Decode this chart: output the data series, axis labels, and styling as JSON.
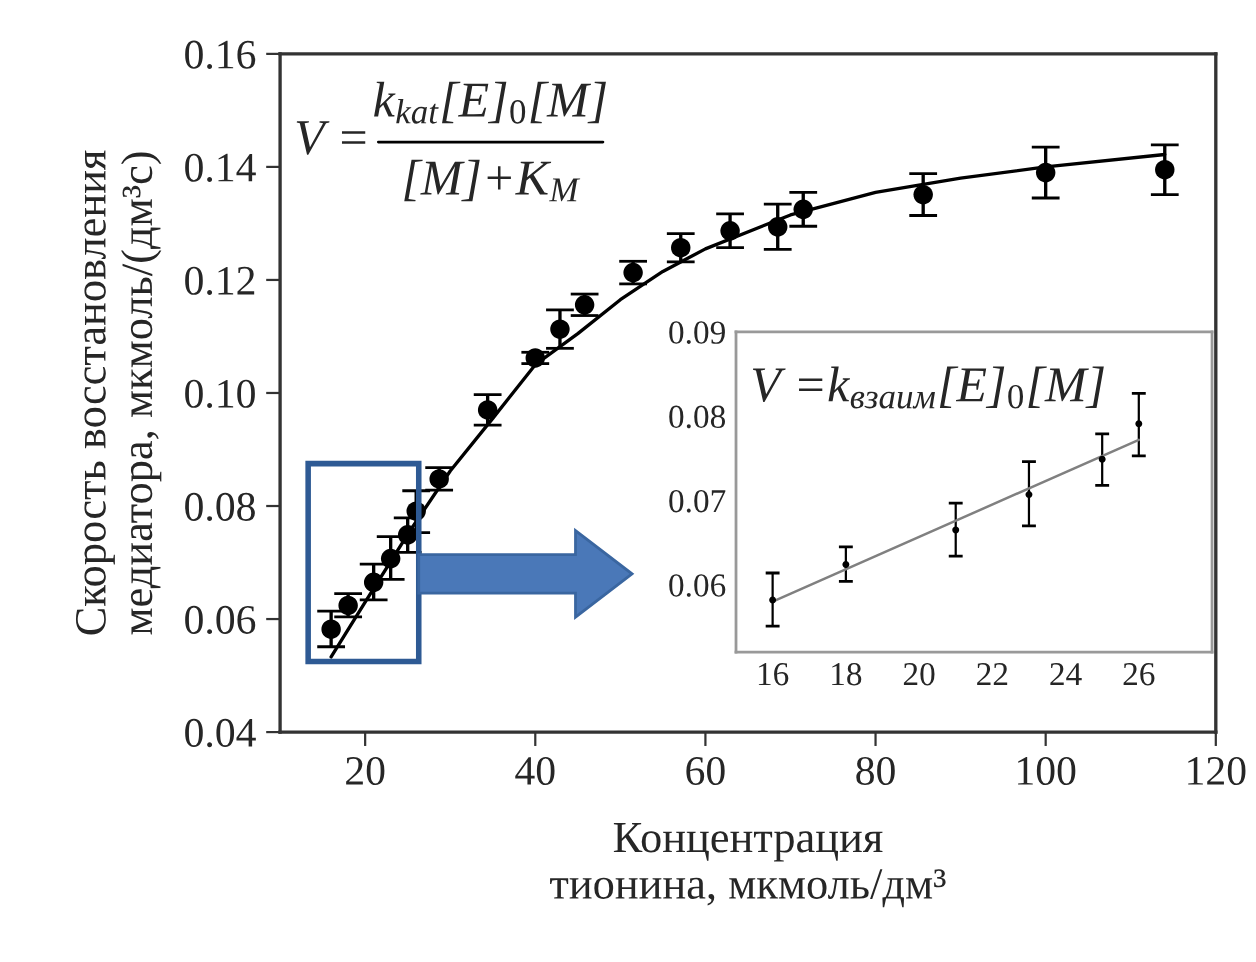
{
  "chart_data": [
    {
      "type": "scatter",
      "xlabel": "Концентрация\nтионина, мкмоль/дм³",
      "ylabel": "Скорость восстановления\nмедиатора, мкмоль/(дм³с)",
      "annotations": [
        "V =",
        "k$_{kat}$[E]$_{0}$[M]",
        "[M]+K$_{M}$"
      ],
      "xlim": [
        10,
        120
      ],
      "ylim": [
        0.04,
        0.16
      ],
      "xticks": [
        20,
        40,
        60,
        80,
        100,
        120
      ],
      "yticks": [
        {
          "value": 0.04,
          "label": "0.04"
        },
        {
          "value": 0.06,
          "label": "0.06"
        },
        {
          "value": 0.08,
          "label": "0.08"
        },
        {
          "value": 0.1,
          "label": "0.10"
        },
        {
          "value": 0.12,
          "label": "0.12"
        },
        {
          "value": 0.14,
          "label": "0.14"
        },
        {
          "value": 0.16,
          "label": "0.16"
        }
      ],
      "grid": false,
      "series": [
        {
          "marker": "circle",
          "color": "#000000",
          "x": [
            16,
            18,
            21,
            23,
            25,
            26,
            28.7,
            34.4,
            40,
            42.9,
            45.8,
            51.5,
            57.1,
            62.9,
            68.5,
            71.5,
            85.6,
            100,
            114
          ],
          "values": [
            0.0582,
            0.0624,
            0.0665,
            0.0707,
            0.0749,
            0.0791,
            0.0848,
            0.097,
            0.1062,
            0.1113,
            0.1156,
            0.1213,
            0.1257,
            0.1287,
            0.1294,
            0.1325,
            0.1351,
            0.139,
            0.1395
          ],
          "errors": [
            [
              0.0551,
              0.0614
            ],
            [
              0.0604,
              0.0645
            ],
            [
              0.0634,
              0.0697
            ],
            [
              0.067,
              0.0746
            ],
            [
              0.0718,
              0.0779
            ],
            [
              0.0753,
              0.0827
            ],
            0.002,
            0.0027,
            0.001,
            0.0034,
            0.0019,
            0.002,
            0.0025,
            0.003,
            0.004,
            0.003,
            0.0037,
            0.0045,
            0.0044
          ]
        },
        {
          "type": "line",
          "color": "#000000",
          "x": [
            16,
            20,
            25,
            30,
            35,
            40,
            45,
            50,
            55,
            60,
            70,
            80,
            90,
            100,
            114
          ],
          "values": [
            0.0533,
            0.063,
            0.075,
            0.0862,
            0.0955,
            0.105,
            0.1105,
            0.1165,
            0.1215,
            0.1255,
            0.1315,
            0.1355,
            0.138,
            0.14,
            0.1422
          ]
        }
      ]
    },
    {
      "type": "scatter",
      "annotations": [
        "V =k$_{взаим}$[E]$_{0}$[M]"
      ],
      "xlim": [
        15,
        28
      ],
      "ylim": [
        0.052,
        0.09
      ],
      "xticks": [
        16,
        18,
        20,
        22,
        24,
        26
      ],
      "yticks": [
        {
          "value": 0.06,
          "label": "0.06"
        },
        {
          "value": 0.07,
          "label": "0.07"
        },
        {
          "value": 0.08,
          "label": "0.08"
        },
        {
          "value": 0.09,
          "label": "0.09"
        }
      ],
      "grid": false,
      "series": [
        {
          "marker": "circle",
          "color": "#000000",
          "x": [
            16,
            18,
            21,
            23,
            25,
            26
          ],
          "values": [
            0.0582,
            0.0624,
            0.0665,
            0.0707,
            0.0749,
            0.0791
          ],
          "errors": [
            [
              0.0551,
              0.0614
            ],
            [
              0.0604,
              0.0645
            ],
            [
              0.0634,
              0.0697
            ],
            [
              0.067,
              0.0746
            ],
            [
              0.0718,
              0.0779
            ],
            [
              0.0753,
              0.0827
            ]
          ]
        },
        {
          "type": "line",
          "color": "#808080",
          "x": [
            16,
            26
          ],
          "values": [
            0.058,
            0.0772
          ]
        }
      ]
    }
  ]
}
